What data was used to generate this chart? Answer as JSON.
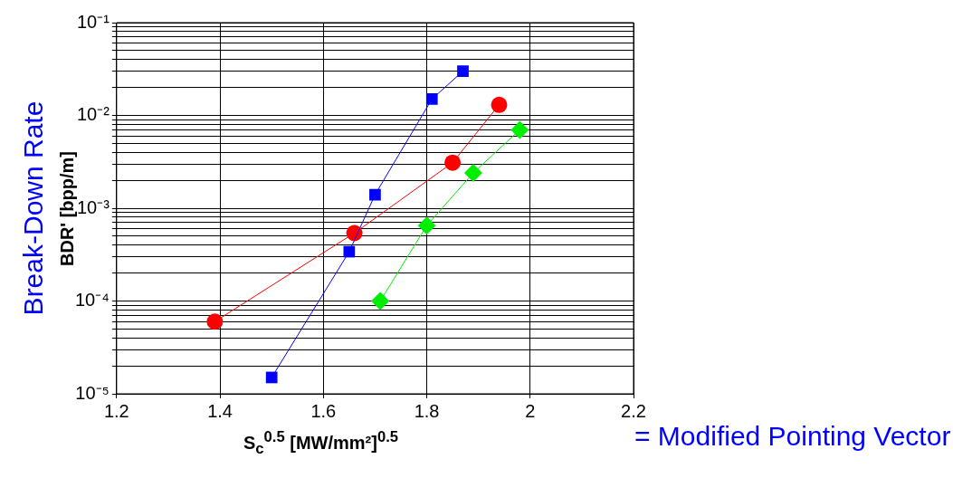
{
  "chart_data": {
    "type": "line",
    "xlabel": "S$_{c}$$^{0.5}$ [MW/mm²]$^{0.5}$",
    "ylabel": "BDR' [bpp/m]",
    "annotations": [
      "Break-Down Rate",
      "= Modified Pointing Vector"
    ],
    "log": "y",
    "grid": true,
    "legend": false,
    "line_style": "solid",
    "xlim": [
      1.2,
      2.2
    ],
    "xticks": [
      1.2,
      1.4,
      1.6,
      1.8,
      2,
      2.2
    ],
    "ylim": [
      1e-05,
      0.1
    ],
    "yticks": [
      {
        "value": 1e-05,
        "label": "10⁻⁵"
      },
      {
        "value": 2e-05,
        "label": null
      },
      {
        "value": 3e-05,
        "label": null
      },
      {
        "value": 4e-05,
        "label": null
      },
      {
        "value": 5e-05,
        "label": null
      },
      {
        "value": 6e-05,
        "label": null
      },
      {
        "value": 7e-05,
        "label": null
      },
      {
        "value": 8e-05,
        "label": null
      },
      {
        "value": 9e-05,
        "label": null
      },
      {
        "value": 0.0001,
        "label": "10⁻⁴"
      },
      {
        "value": 0.0002,
        "label": null
      },
      {
        "value": 0.0003,
        "label": null
      },
      {
        "value": 0.0004,
        "label": null
      },
      {
        "value": 0.0005,
        "label": null
      },
      {
        "value": 0.0006,
        "label": null
      },
      {
        "value": 0.0007,
        "label": null
      },
      {
        "value": 0.0008,
        "label": null
      },
      {
        "value": 0.0009,
        "label": null
      },
      {
        "value": 0.001,
        "label": "10⁻³"
      },
      {
        "value": 0.002,
        "label": null
      },
      {
        "value": 0.003,
        "label": null
      },
      {
        "value": 0.004,
        "label": null
      },
      {
        "value": 0.005,
        "label": null
      },
      {
        "value": 0.006,
        "label": null
      },
      {
        "value": 0.007,
        "label": null
      },
      {
        "value": 0.008,
        "label": null
      },
      {
        "value": 0.009,
        "label": null
      },
      {
        "value": 0.01,
        "label": "10⁻²"
      },
      {
        "value": 0.02,
        "label": null
      },
      {
        "value": 0.03,
        "label": null
      },
      {
        "value": 0.04,
        "label": null
      },
      {
        "value": 0.05,
        "label": null
      },
      {
        "value": 0.06,
        "label": null
      },
      {
        "value": 0.07,
        "label": null
      },
      {
        "value": 0.08,
        "label": null
      },
      {
        "value": 0.09,
        "label": null
      },
      {
        "value": 0.1,
        "label": "10⁻¹"
      }
    ],
    "series": [
      {
        "color": "#0000ff",
        "marker": "square",
        "x": [
          1.5,
          1.65,
          1.7,
          1.81,
          1.87
        ],
        "values": [
          1.5e-05,
          0.00034,
          0.0014,
          0.015,
          0.03
        ]
      },
      {
        "color": "#ff0000",
        "marker": "circle",
        "x": [
          1.39,
          1.66,
          1.85,
          1.94
        ],
        "values": [
          6e-05,
          0.00054,
          0.0031,
          0.013
        ]
      },
      {
        "color": "#00ee00",
        "marker": "diamond",
        "x": [
          1.71,
          1.8,
          1.89,
          1.98
        ],
        "values": [
          0.0001,
          0.00065,
          0.0024,
          0.007
        ]
      }
    ]
  }
}
